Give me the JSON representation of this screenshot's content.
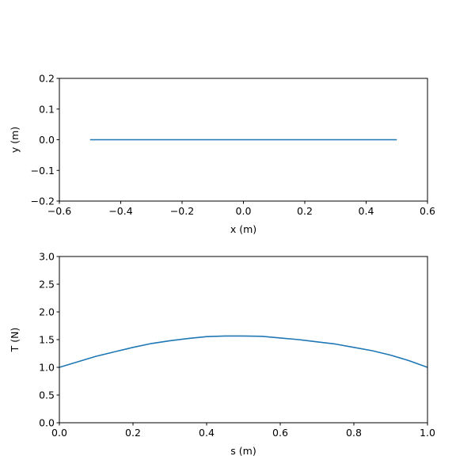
{
  "chart_data": [
    {
      "type": "line",
      "xlabel": "x (m)",
      "ylabel": "y (m)",
      "xlim": [
        -0.6,
        0.6
      ],
      "ylim": [
        -0.2,
        0.2
      ],
      "xticks": [
        "−0.6",
        "−0.4",
        "−0.2",
        "0.0",
        "0.2",
        "0.4",
        "0.6"
      ],
      "yticks": [
        "−0.2",
        "−0.1",
        "0.0",
        "0.1",
        "0.2"
      ],
      "grid": false,
      "series": [
        {
          "color": "#1f77b4",
          "x": [
            -0.5,
            0.5
          ],
          "y": [
            0.0,
            0.0
          ]
        }
      ]
    },
    {
      "type": "line",
      "xlabel": "s (m)",
      "ylabel": "T (N)",
      "xlim": [
        0.0,
        1.0
      ],
      "ylim": [
        0.0,
        3.0
      ],
      "xticks": [
        "0.0",
        "0.2",
        "0.4",
        "0.6",
        "0.8",
        "1.0"
      ],
      "yticks": [
        "0.0",
        "0.5",
        "1.0",
        "1.5",
        "2.0",
        "2.5",
        "3.0"
      ],
      "grid": false,
      "series": [
        {
          "color": "#1f77b4",
          "x": [
            0.0,
            0.05,
            0.1,
            0.15,
            0.2,
            0.25,
            0.3,
            0.35,
            0.4,
            0.45,
            0.5,
            0.55,
            0.6,
            0.65,
            0.7,
            0.75,
            0.8,
            0.85,
            0.9,
            0.95,
            1.0
          ],
          "y": [
            1.0,
            1.1,
            1.2,
            1.28,
            1.36,
            1.43,
            1.48,
            1.52,
            1.555,
            1.565,
            1.565,
            1.56,
            1.53,
            1.5,
            1.46,
            1.42,
            1.36,
            1.3,
            1.22,
            1.12,
            1.0
          ]
        }
      ]
    }
  ]
}
